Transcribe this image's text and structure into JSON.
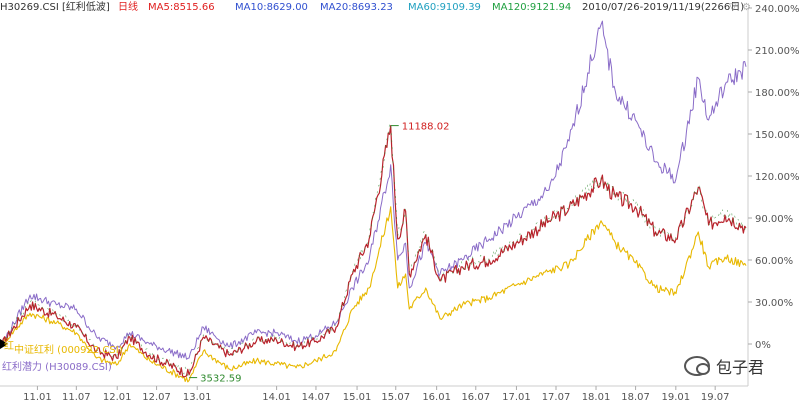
{
  "header": {
    "code": "H30269.CSI",
    "name": "[红利低波]",
    "period": "日线",
    "ma5": "MA5:8515.66",
    "ma10": "MA10:8629.00",
    "ma20": "MA20:8693.23",
    "ma60": "MA60:9109.39",
    "ma120": "MA120:9121.94",
    "date_range": "2010/07/26-2019/11/19(2266日)",
    "colors": {
      "code": "#333333",
      "name": "#333333",
      "period": "#e02020",
      "ma5": "#e02020",
      "ma10": "#3050d0",
      "ma20": "#3050d0",
      "ma60": "#20a0c0",
      "ma120": "#20a040",
      "date_range": "#333333"
    }
  },
  "watermark": "包子君",
  "chart_data": {
    "type": "line",
    "x_ticks": [
      "11.01",
      "11.07",
      "12.01",
      "12.07",
      "13.01",
      "14.01",
      "14.07",
      "15.01",
      "15.07",
      "16.01",
      "16.07",
      "17.01",
      "17.07",
      "18.01",
      "18.07",
      "19.01",
      "19.07"
    ],
    "y_ticks": [
      "240.00%",
      "210.00%",
      "180.00%",
      "150.00%",
      "120.00%",
      "90.00%",
      "60.00%",
      "30.00%",
      "0%"
    ],
    "ylim": [
      -30,
      240
    ],
    "annotations": [
      {
        "label": "11188.02",
        "x": "2015-06-08",
        "y": 156
      },
      {
        "label": "3532.59",
        "x": "2012-11-28",
        "y": -24
      }
    ],
    "legend": [
      {
        "name": "中证红利 (000922.CSI)",
        "color": "#e8b800"
      },
      {
        "name": "红利潜力 (H30089.CSI)",
        "color": "#8a6cc8"
      }
    ],
    "legend_prefix": "红",
    "series": [
      {
        "name": "红利低波 (H30269.CSI)",
        "color": "#b8232c",
        "points": [
          [
            "2010-07-26",
            0
          ],
          [
            "2010-12-01",
            28
          ],
          [
            "2011-04-01",
            20
          ],
          [
            "2011-07-01",
            12
          ],
          [
            "2011-10-01",
            -5
          ],
          [
            "2012-01-01",
            -10
          ],
          [
            "2012-03-01",
            5
          ],
          [
            "2012-06-01",
            -8
          ],
          [
            "2012-11-28",
            -22
          ],
          [
            "2013-02-01",
            5
          ],
          [
            "2013-06-01",
            -8
          ],
          [
            "2013-10-01",
            2
          ],
          [
            "2014-01-01",
            3
          ],
          [
            "2014-04-01",
            -2
          ],
          [
            "2014-07-01",
            2
          ],
          [
            "2014-10-01",
            12
          ],
          [
            "2014-12-15",
            50
          ],
          [
            "2015-03-01",
            75
          ],
          [
            "2015-06-08",
            156
          ],
          [
            "2015-07-10",
            75
          ],
          [
            "2015-08-15",
            95
          ],
          [
            "2015-09-01",
            50
          ],
          [
            "2015-11-15",
            78
          ],
          [
            "2016-01-20",
            45
          ],
          [
            "2016-05-01",
            55
          ],
          [
            "2016-09-01",
            60
          ],
          [
            "2017-01-01",
            72
          ],
          [
            "2017-06-01",
            88
          ],
          [
            "2017-09-01",
            97
          ],
          [
            "2018-01-25",
            117
          ],
          [
            "2018-04-01",
            105
          ],
          [
            "2018-07-01",
            98
          ],
          [
            "2018-10-01",
            80
          ],
          [
            "2019-01-03",
            75
          ],
          [
            "2019-04-15",
            112
          ],
          [
            "2019-06-01",
            85
          ],
          [
            "2019-08-15",
            92
          ],
          [
            "2019-11-19",
            83
          ]
        ]
      },
      {
        "name": "中证红利 (000922.CSI)",
        "color": "#e8b800",
        "points": [
          [
            "2010-07-26",
            0
          ],
          [
            "2010-12-01",
            22
          ],
          [
            "2011-04-01",
            15
          ],
          [
            "2011-07-01",
            8
          ],
          [
            "2011-10-01",
            -10
          ],
          [
            "2012-01-01",
            -15
          ],
          [
            "2012-03-01",
            0
          ],
          [
            "2012-06-01",
            -12
          ],
          [
            "2012-11-28",
            -26
          ],
          [
            "2013-02-01",
            -5
          ],
          [
            "2013-06-01",
            -18
          ],
          [
            "2013-10-01",
            -12
          ],
          [
            "2014-01-01",
            -14
          ],
          [
            "2014-04-01",
            -17
          ],
          [
            "2014-07-01",
            -12
          ],
          [
            "2014-10-01",
            -5
          ],
          [
            "2014-12-15",
            25
          ],
          [
            "2015-03-01",
            40
          ],
          [
            "2015-06-08",
            98
          ],
          [
            "2015-07-10",
            40
          ],
          [
            "2015-08-15",
            50
          ],
          [
            "2015-09-01",
            25
          ],
          [
            "2015-11-15",
            40
          ],
          [
            "2016-01-20",
            18
          ],
          [
            "2016-05-01",
            28
          ],
          [
            "2016-09-01",
            33
          ],
          [
            "2017-01-01",
            42
          ],
          [
            "2017-06-01",
            52
          ],
          [
            "2017-09-01",
            57
          ],
          [
            "2018-01-25",
            88
          ],
          [
            "2018-04-01",
            72
          ],
          [
            "2018-07-01",
            58
          ],
          [
            "2018-10-01",
            40
          ],
          [
            "2019-01-03",
            36
          ],
          [
            "2019-04-15",
            80
          ],
          [
            "2019-06-01",
            55
          ],
          [
            "2019-08-15",
            62
          ],
          [
            "2019-11-19",
            56
          ]
        ]
      },
      {
        "name": "红利潜力 (H30089.CSI)",
        "color": "#8a6cc8",
        "points": [
          [
            "2010-07-26",
            0
          ],
          [
            "2010-12-01",
            35
          ],
          [
            "2011-04-01",
            28
          ],
          [
            "2011-07-01",
            25
          ],
          [
            "2011-10-01",
            5
          ],
          [
            "2012-01-01",
            -2
          ],
          [
            "2012-03-01",
            8
          ],
          [
            "2012-06-01",
            0
          ],
          [
            "2012-11-28",
            -10
          ],
          [
            "2013-02-01",
            12
          ],
          [
            "2013-06-01",
            -2
          ],
          [
            "2013-10-01",
            8
          ],
          [
            "2014-01-01",
            8
          ],
          [
            "2014-04-01",
            2
          ],
          [
            "2014-07-01",
            6
          ],
          [
            "2014-10-01",
            15
          ],
          [
            "2014-12-15",
            40
          ],
          [
            "2015-03-01",
            60
          ],
          [
            "2015-06-08",
            128
          ],
          [
            "2015-07-10",
            60
          ],
          [
            "2015-08-15",
            72
          ],
          [
            "2015-09-01",
            40
          ],
          [
            "2015-11-15",
            72
          ],
          [
            "2016-01-20",
            50
          ],
          [
            "2016-05-01",
            60
          ],
          [
            "2016-09-01",
            75
          ],
          [
            "2017-01-01",
            90
          ],
          [
            "2017-06-01",
            110
          ],
          [
            "2017-09-01",
            145
          ],
          [
            "2018-01-25",
            228
          ],
          [
            "2018-04-01",
            180
          ],
          [
            "2018-07-01",
            160
          ],
          [
            "2018-10-01",
            130
          ],
          [
            "2019-01-03",
            118
          ],
          [
            "2019-04-15",
            190
          ],
          [
            "2019-06-01",
            160
          ],
          [
            "2019-08-15",
            185
          ],
          [
            "2019-11-19",
            198
          ]
        ]
      }
    ]
  }
}
